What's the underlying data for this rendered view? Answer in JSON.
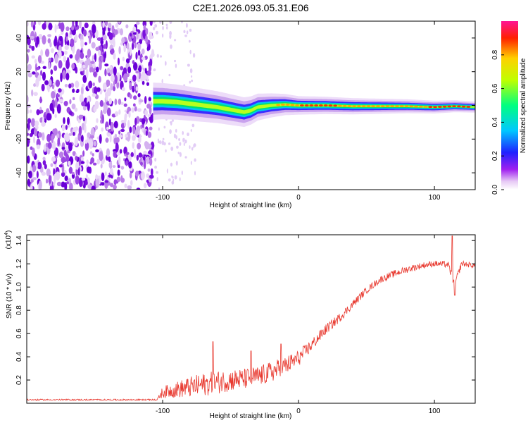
{
  "title": "C2E1.2026.093.05.31.E06",
  "chart_data": [
    {
      "type": "heatmap",
      "xlabel": "Height of straight line (km)",
      "ylabel": "Frequency (Hz)",
      "xlim": [
        -200,
        130
      ],
      "ylim": [
        -50,
        50
      ],
      "xticks": [
        -100,
        0,
        100
      ],
      "xtick_labels": [
        "-100",
        "0",
        "100"
      ],
      "yticks": [
        -40,
        -20,
        0,
        20,
        40
      ],
      "ytick_labels": [
        "-40",
        "-20",
        "0",
        "20",
        "40"
      ],
      "colorbar": {
        "label": "Normalized spectral amplitude",
        "range": [
          0,
          1
        ],
        "ticks": [
          0,
          0.2,
          0.4,
          0.6,
          0.8
        ],
        "tick_labels": [
          "0.0",
          "0.2",
          "0.4",
          "0.6",
          "0.8"
        ]
      },
      "noise_region_x": [
        -200,
        -107
      ],
      "signal_centerline": {
        "x": [
          -107,
          -100,
          -90,
          -80,
          -70,
          -60,
          -50,
          -40,
          -35,
          -30,
          -20,
          -10,
          0,
          10,
          20,
          40,
          60,
          80,
          100,
          115,
          130
        ],
        "freq": [
          2.5,
          2.5,
          2.0,
          1.0,
          0.0,
          -1.0,
          -2.5,
          -4.0,
          -3.0,
          -1.0,
          0.0,
          0.5,
          0.0,
          0.0,
          0.0,
          -0.5,
          -0.5,
          -0.5,
          -1.0,
          -0.5,
          -1.0
        ]
      },
      "signal_halfwidth_hz": [
        {
          "x": -107,
          "w": 5
        },
        {
          "x": -40,
          "w": 4
        },
        {
          "x": 0,
          "w": 2.5
        },
        {
          "x": 130,
          "w": 1.5
        }
      ]
    },
    {
      "type": "line",
      "xlabel": "Height of straight line (km)",
      "ylabel": "SNR (10 * v/v)",
      "y_multiplier_label": "(x10",
      "y_multiplier_exp": "4",
      "y_multiplier_close": ")",
      "xlim": [
        -200,
        130
      ],
      "ylim": [
        0,
        14500
      ],
      "xticks": [
        -100,
        0,
        100
      ],
      "xtick_labels": [
        "-100",
        "0",
        "100"
      ],
      "yticks": [
        2000,
        4000,
        6000,
        8000,
        10000,
        12000,
        14000
      ],
      "ytick_labels": [
        "0.2",
        "0.4",
        "0.6",
        "0.8",
        "1.0",
        "1.2",
        "1.4"
      ],
      "series": [
        {
          "name": "SNR",
          "color": "#e8382e",
          "x": [
            -200,
            -150,
            -104,
            -100,
            -90,
            -80,
            -70,
            -60,
            -50,
            -40,
            -30,
            -20,
            -10,
            0,
            10,
            20,
            30,
            40,
            50,
            60,
            70,
            80,
            90,
            100,
            110,
            115,
            120,
            130
          ],
          "y": [
            300,
            300,
            350,
            900,
            1100,
            1300,
            1500,
            1700,
            1900,
            2000,
            2200,
            2600,
            3100,
            3800,
            5000,
            6300,
            7300,
            8500,
            9700,
            10600,
            11100,
            11500,
            11800,
            12000,
            11900,
            10200,
            12000,
            11800
          ],
          "noise": [
            0,
            0,
            0,
            500,
            700,
            900,
            1000,
            1000,
            950,
            900,
            900,
            900,
            850,
            700,
            550,
            450,
            400,
            350,
            300,
            300,
            300,
            300,
            280,
            260,
            280,
            400,
            250,
            220
          ]
        }
      ],
      "peaks": [
        {
          "x": -63,
          "y": 5300
        },
        {
          "x": -35,
          "y": 4500
        },
        {
          "x": -13,
          "y": 5100
        },
        {
          "x": 113,
          "y": 14400
        },
        {
          "x": 115,
          "y": 9300
        }
      ]
    }
  ],
  "colors": {
    "background": "#ffffff",
    "axes": "#000000",
    "line": "#e8382e",
    "noise_base": "#8a2be2"
  }
}
